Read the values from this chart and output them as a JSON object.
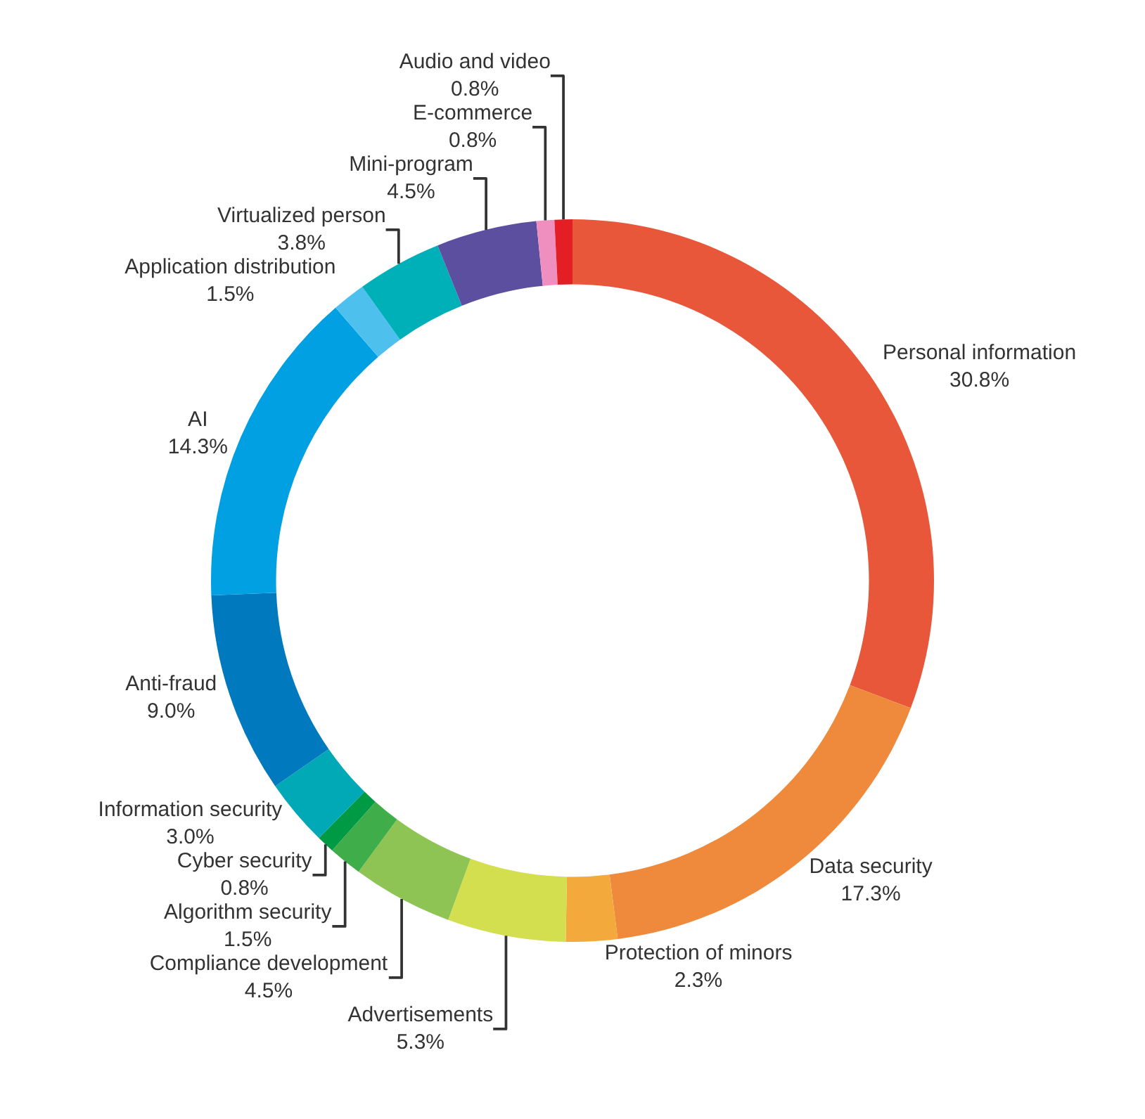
{
  "chart_data": {
    "type": "donut",
    "categories": [
      "Personal information",
      "Data security",
      "Protection of minors",
      "Advertisements",
      "Compliance development",
      "Algorithm security",
      "Cyber security",
      "Information security",
      "Anti-fraud",
      "AI",
      "Application distribution",
      "Virtualized person",
      "Mini-program",
      "E-commerce",
      "Audio and video"
    ],
    "values": [
      30.8,
      17.3,
      2.3,
      5.3,
      4.5,
      1.5,
      0.8,
      3.0,
      9.0,
      14.3,
      1.5,
      3.8,
      4.5,
      0.8,
      0.8
    ],
    "value_labels": [
      "30.8%",
      "17.3%",
      "2.3%",
      "5.3%",
      "4.5%",
      "1.5%",
      "0.8%",
      "3.0%",
      "9.0%",
      "14.3%",
      "1.5%",
      "3.8%",
      "4.5%",
      "0.8%",
      "0.8%"
    ],
    "colors": [
      "#e8573a",
      "#ef8a3c",
      "#f4a93d",
      "#d4df4f",
      "#8dc454",
      "#3fae4a",
      "#009a44",
      "#00a9b5",
      "#0079bf",
      "#00a0e3",
      "#4dc0ee",
      "#00b0b9",
      "#5c4fa0",
      "#ef8fc0",
      "#e31e24"
    ],
    "legend": false
  }
}
